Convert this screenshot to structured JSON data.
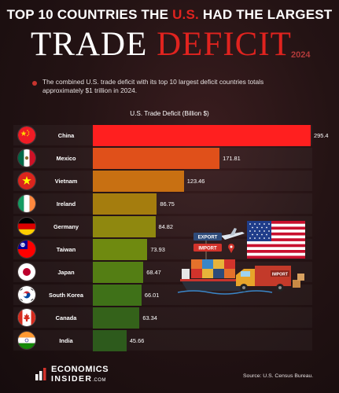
{
  "header": {
    "title_part1": "TOP 10 COUNTRIES THE ",
    "title_highlight": "U.S.",
    "title_part2": " HAD THE LARGEST",
    "main_word1": "TRADE",
    "main_word2": "DEFICIT",
    "year": "2024",
    "summary": "The combined U.S. trade deficit with its top 10 largest deficit countries totals approximately $1 trillion in 2024."
  },
  "chart_data": {
    "type": "bar",
    "orientation": "horizontal",
    "title": "U.S. Trade Deficit (Billion $)",
    "categories": [
      "China",
      "Mexico",
      "Vietnam",
      "Ireland",
      "Germany",
      "Taiwan",
      "Japan",
      "South Korea",
      "Canada",
      "India"
    ],
    "values": [
      295.4,
      171.81,
      123.46,
      86.75,
      84.82,
      73.93,
      68.47,
      66.01,
      63.34,
      45.66
    ],
    "value_labels": [
      "295.4",
      "171.81",
      "123.46",
      "86.75",
      "84.82",
      "73.93",
      "68.47",
      "66.01",
      "63.34",
      "45.66"
    ],
    "xlim": [
      0,
      295.4
    ],
    "grid": false,
    "legend": "none",
    "colors": [
      "#ff1f1f",
      "#e0501a",
      "#c87012",
      "#a57d0e",
      "#8f880f",
      "#6f8a10",
      "#547e14",
      "#3f7118",
      "#34621a",
      "#2d5a1c"
    ]
  },
  "illustration": {
    "export_label": "EXPORT",
    "import_label": "IMPORT",
    "truck_label": "IMPORT"
  },
  "footer": {
    "logo_line1": "ECONOMICS",
    "logo_line2": "INSIDER",
    "logo_suffix": ".COM",
    "source": "Source: U.S. Census Bureau."
  }
}
